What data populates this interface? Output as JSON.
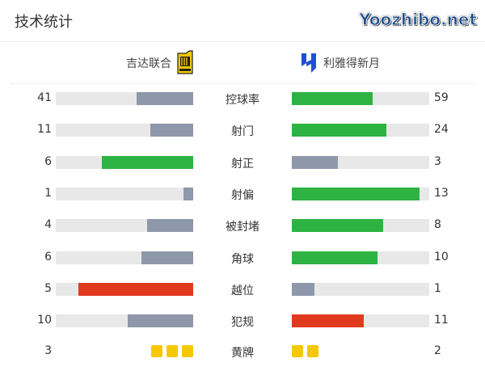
{
  "title": "技术统计",
  "home_team": {
    "name": "吉达联合",
    "logo": "al-ittihad-crest"
  },
  "away_team": {
    "name": "利雅得新月",
    "logo": "al-hilal-crest"
  },
  "colors": {
    "win": "#2db342",
    "lose": "#8e98aa",
    "bad": "#e03a1e",
    "track": "#e8e8e8",
    "card": "#f6c800"
  },
  "stats": [
    {
      "label": "控球率",
      "home": 41,
      "away": 59,
      "home_color": "lose",
      "away_color": "win"
    },
    {
      "label": "射门",
      "home": 11,
      "away": 24,
      "home_color": "lose",
      "away_color": "win"
    },
    {
      "label": "射正",
      "home": 6,
      "away": 3,
      "home_color": "win",
      "away_color": "lose"
    },
    {
      "label": "射偏",
      "home": 1,
      "away": 13,
      "home_color": "lose",
      "away_color": "win"
    },
    {
      "label": "被封堵",
      "home": 4,
      "away": 8,
      "home_color": "lose",
      "away_color": "win"
    },
    {
      "label": "角球",
      "home": 6,
      "away": 10,
      "home_color": "lose",
      "away_color": "win"
    },
    {
      "label": "越位",
      "home": 5,
      "away": 1,
      "home_color": "bad",
      "away_color": "lose"
    },
    {
      "label": "犯规",
      "home": 10,
      "away": 11,
      "home_color": "lose",
      "away_color": "bad"
    }
  ],
  "yellow_cards": {
    "label": "黄牌",
    "home": 3,
    "away": 2
  },
  "watermark": "Yoozhibo.net"
}
